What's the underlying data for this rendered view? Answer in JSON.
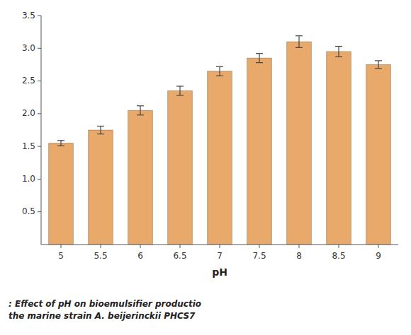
{
  "chart_data": {
    "type": "bar",
    "categories": [
      "5",
      "5.5",
      "6",
      "6.5",
      "7",
      "7.5",
      "8",
      "8.5",
      "9"
    ],
    "values": [
      1.55,
      1.75,
      2.05,
      2.35,
      2.65,
      2.85,
      3.1,
      2.95,
      2.75
    ],
    "errors": [
      0.04,
      0.06,
      0.07,
      0.07,
      0.07,
      0.07,
      0.09,
      0.08,
      0.06
    ],
    "color": "#E8A96A",
    "xlabel": "pH",
    "ylim": [
      0,
      3.5
    ],
    "yticks": [
      0.5,
      {
        "value": 1,
        "label": "1.0"
      },
      1.5,
      {
        "value": 2,
        "label": "2.0"
      },
      2.5,
      {
        "value": 3,
        "label": "3.0"
      },
      3.5
    ],
    "grid": false,
    "annotations": [
      ": Effect of pH on bioemulsifier productio",
      "the marine strain A. beijerinckii PHCS7"
    ]
  }
}
